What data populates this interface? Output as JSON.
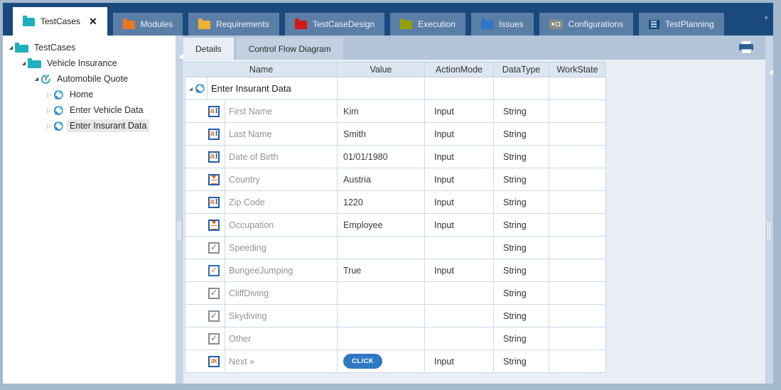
{
  "app_tabs": [
    {
      "label": "TestCases",
      "icon": "folder",
      "icon_name": "testcases-folder-icon",
      "color": "#1fb0bf",
      "active": true,
      "closable": true,
      "close_glyph": "✕"
    },
    {
      "label": "Modules",
      "icon": "folder",
      "icon_name": "modules-folder-icon",
      "color": "#e87722"
    },
    {
      "label": "Requirements",
      "icon": "folder",
      "icon_name": "requirements-folder-icon",
      "color": "#f2b02e"
    },
    {
      "label": "TestCaseDesign",
      "icon": "folder",
      "icon_name": "testcasedesign-folder-icon",
      "color": "#d11a15"
    },
    {
      "label": "Execution",
      "icon": "folder",
      "icon_name": "execution-folder-icon",
      "color": "#93a203"
    },
    {
      "label": "Issues",
      "icon": "folder",
      "icon_name": "issues-folder-icon",
      "color": "#2d76c9"
    },
    {
      "label": "Configurations",
      "icon": "configurations",
      "icon_name": "configurations-icon",
      "color": "#8b8b86"
    },
    {
      "label": "TestPlanning",
      "icon": "testplanning",
      "icon_name": "testplanning-icon",
      "color": "#16497c"
    }
  ],
  "tree": {
    "items": [
      {
        "label": "TestCases",
        "level": 0,
        "arrow": "expanded",
        "icon": "folder",
        "icon_name": "folder-icon",
        "color": "#1fb0bf",
        "selected": false
      },
      {
        "label": "Vehicle Insurance",
        "level": 1,
        "arrow": "expanded",
        "icon": "folder",
        "icon_name": "folder-icon",
        "color": "#1fb0bf",
        "selected": false
      },
      {
        "label": "Automobile Quote",
        "level": 2,
        "arrow": "expanded",
        "icon": "quote",
        "icon_name": "test-scenario-icon",
        "selected": false
      },
      {
        "label": "Home",
        "level": 3,
        "arrow": "collapsed",
        "icon": "refresh",
        "icon_name": "testcase-refresh-icon",
        "selected": false
      },
      {
        "label": "Enter Vehicle Data",
        "level": 3,
        "arrow": "collapsed",
        "icon": "refresh",
        "icon_name": "testcase-refresh-icon",
        "selected": false
      },
      {
        "label": "Enter Insurant Data",
        "level": 3,
        "arrow": "collapsed",
        "icon": "refresh",
        "icon_name": "testcase-refresh-icon",
        "selected": true
      }
    ]
  },
  "details_tabs": [
    {
      "label": "Details",
      "active": true
    },
    {
      "label": "Control Flow Diagram",
      "active": false
    }
  ],
  "table": {
    "columns": [
      "Name",
      "Value",
      "ActionMode",
      "DataType",
      "WorkState"
    ],
    "group_row": {
      "name": "Enter Insurant Data",
      "icon": "refresh"
    },
    "rows": [
      {
        "icon": "textfield",
        "icon_name": "textfield-icon",
        "name": "First Name",
        "value": "Kim",
        "action_mode": "Input",
        "data_type": "String",
        "work_state": ""
      },
      {
        "icon": "textfield",
        "icon_name": "textfield-icon",
        "name": "Last Name",
        "value": "Smith",
        "action_mode": "Input",
        "data_type": "String",
        "work_state": ""
      },
      {
        "icon": "textfield",
        "icon_name": "textfield-icon",
        "name": "Date of Birth",
        "value": "01/01/1980",
        "action_mode": "Input",
        "data_type": "String",
        "work_state": ""
      },
      {
        "icon": "dropdown",
        "icon_name": "dropdown-icon",
        "name": "Country",
        "value": "Austria",
        "action_mode": "Input",
        "data_type": "String",
        "work_state": ""
      },
      {
        "icon": "textfield",
        "icon_name": "textfield-icon",
        "name": "Zip Code",
        "value": "1220",
        "action_mode": "Input",
        "data_type": "String",
        "work_state": ""
      },
      {
        "icon": "dropdown",
        "icon_name": "dropdown-icon",
        "name": "Occupation",
        "value": "Employee",
        "action_mode": "Input",
        "data_type": "String",
        "work_state": ""
      },
      {
        "icon": "checkbox",
        "icon_name": "checkbox-icon",
        "name": "Speeding",
        "value": "",
        "action_mode": "",
        "data_type": "String",
        "work_state": ""
      },
      {
        "icon": "checkbox-checked",
        "icon_name": "checkbox-checked-icon",
        "name": "BungeeJumping",
        "value": "True",
        "action_mode": "Input",
        "data_type": "String",
        "work_state": ""
      },
      {
        "icon": "checkbox",
        "icon_name": "checkbox-icon",
        "name": "CliffDiving",
        "value": "",
        "action_mode": "",
        "data_type": "String",
        "work_state": ""
      },
      {
        "icon": "checkbox",
        "icon_name": "checkbox-icon",
        "name": "Skydiving",
        "value": "",
        "action_mode": "",
        "data_type": "String",
        "work_state": ""
      },
      {
        "icon": "checkbox",
        "icon_name": "checkbox-icon",
        "name": "Other",
        "value": "",
        "action_mode": "",
        "data_type": "String",
        "work_state": ""
      },
      {
        "icon": "ok",
        "icon_name": "ok-button-icon",
        "name": "Next »",
        "value": "CLICK",
        "action_mode": "Input",
        "data_type": "String",
        "work_state": "",
        "value_is_button": true
      }
    ]
  },
  "colors": {
    "tab_bar": "#1a4a7d",
    "inactive_tab": "#5b7ea7",
    "frame": "#a4b8ce",
    "click_button": "#2e78c4",
    "table_border": "#c9d9ea",
    "selection_gray": "#e8e8e8"
  }
}
